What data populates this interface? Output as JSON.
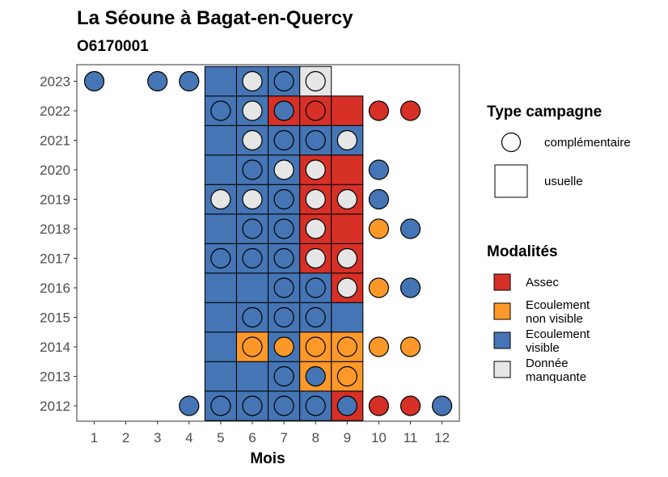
{
  "chart_data": {
    "type": "heatmap",
    "title": "La Séoune à Bagat-en-Quercy",
    "subtitle": "O6170001",
    "xlabel": "Mois",
    "ylabel": "",
    "x_ticks": [
      "1",
      "2",
      "3",
      "4",
      "5",
      "6",
      "7",
      "8",
      "9",
      "10",
      "11",
      "12"
    ],
    "y_ticks": [
      "2012",
      "2013",
      "2014",
      "2015",
      "2016",
      "2017",
      "2018",
      "2019",
      "2020",
      "2021",
      "2022",
      "2023"
    ],
    "colors": {
      "Assec": "#d73027",
      "Ecoulement non visible": "#fe9929",
      "Ecoulement visible": "#4575b4",
      "Donnée manquante": "#e6e6e6"
    },
    "legend_type": {
      "title": "Type campagne",
      "entries": [
        {
          "label": "complémentaire",
          "shape": "circle"
        },
        {
          "label": "usuelle",
          "shape": "square"
        }
      ]
    },
    "legend_modalites": {
      "title": "Modalités",
      "entries": [
        {
          "key": "Assec",
          "lines": [
            "Assec"
          ]
        },
        {
          "key": "Ecoulement non visible",
          "lines": [
            "Ecoulement",
            "non visible"
          ]
        },
        {
          "key": "Ecoulement visible",
          "lines": [
            "Ecoulement",
            "visible"
          ]
        },
        {
          "key": "Donnée manquante",
          "lines": [
            "Donnée",
            "manquante"
          ]
        }
      ]
    },
    "usuelle": [
      {
        "year": "2012",
        "month": 5,
        "value": "Ecoulement visible"
      },
      {
        "year": "2012",
        "month": 6,
        "value": "Ecoulement visible"
      },
      {
        "year": "2012",
        "month": 7,
        "value": "Ecoulement visible"
      },
      {
        "year": "2012",
        "month": 8,
        "value": "Ecoulement visible"
      },
      {
        "year": "2012",
        "month": 9,
        "value": "Assec"
      },
      {
        "year": "2013",
        "month": 5,
        "value": "Ecoulement visible"
      },
      {
        "year": "2013",
        "month": 6,
        "value": "Ecoulement visible"
      },
      {
        "year": "2013",
        "month": 7,
        "value": "Ecoulement visible"
      },
      {
        "year": "2013",
        "month": 8,
        "value": "Ecoulement non visible"
      },
      {
        "year": "2013",
        "month": 9,
        "value": "Ecoulement non visible"
      },
      {
        "year": "2014",
        "month": 5,
        "value": "Ecoulement visible"
      },
      {
        "year": "2014",
        "month": 6,
        "value": "Ecoulement non visible"
      },
      {
        "year": "2014",
        "month": 7,
        "value": "Ecoulement visible"
      },
      {
        "year": "2014",
        "month": 8,
        "value": "Ecoulement non visible"
      },
      {
        "year": "2014",
        "month": 9,
        "value": "Ecoulement non visible"
      },
      {
        "year": "2015",
        "month": 5,
        "value": "Ecoulement visible"
      },
      {
        "year": "2015",
        "month": 6,
        "value": "Ecoulement visible"
      },
      {
        "year": "2015",
        "month": 7,
        "value": "Ecoulement visible"
      },
      {
        "year": "2015",
        "month": 8,
        "value": "Ecoulement visible"
      },
      {
        "year": "2015",
        "month": 9,
        "value": "Ecoulement visible"
      },
      {
        "year": "2016",
        "month": 5,
        "value": "Ecoulement visible"
      },
      {
        "year": "2016",
        "month": 6,
        "value": "Ecoulement visible"
      },
      {
        "year": "2016",
        "month": 7,
        "value": "Ecoulement visible"
      },
      {
        "year": "2016",
        "month": 8,
        "value": "Ecoulement visible"
      },
      {
        "year": "2016",
        "month": 9,
        "value": "Assec"
      },
      {
        "year": "2017",
        "month": 5,
        "value": "Ecoulement visible"
      },
      {
        "year": "2017",
        "month": 6,
        "value": "Ecoulement visible"
      },
      {
        "year": "2017",
        "month": 7,
        "value": "Ecoulement visible"
      },
      {
        "year": "2017",
        "month": 8,
        "value": "Assec"
      },
      {
        "year": "2017",
        "month": 9,
        "value": "Assec"
      },
      {
        "year": "2018",
        "month": 5,
        "value": "Ecoulement visible"
      },
      {
        "year": "2018",
        "month": 6,
        "value": "Ecoulement visible"
      },
      {
        "year": "2018",
        "month": 7,
        "value": "Ecoulement visible"
      },
      {
        "year": "2018",
        "month": 8,
        "value": "Assec"
      },
      {
        "year": "2018",
        "month": 9,
        "value": "Assec"
      },
      {
        "year": "2019",
        "month": 5,
        "value": "Ecoulement visible"
      },
      {
        "year": "2019",
        "month": 6,
        "value": "Ecoulement visible"
      },
      {
        "year": "2019",
        "month": 7,
        "value": "Ecoulement visible"
      },
      {
        "year": "2019",
        "month": 8,
        "value": "Assec"
      },
      {
        "year": "2019",
        "month": 9,
        "value": "Assec"
      },
      {
        "year": "2020",
        "month": 5,
        "value": "Ecoulement visible"
      },
      {
        "year": "2020",
        "month": 6,
        "value": "Ecoulement visible"
      },
      {
        "year": "2020",
        "month": 7,
        "value": "Ecoulement visible"
      },
      {
        "year": "2020",
        "month": 8,
        "value": "Assec"
      },
      {
        "year": "2020",
        "month": 9,
        "value": "Assec"
      },
      {
        "year": "2021",
        "month": 5,
        "value": "Ecoulement visible"
      },
      {
        "year": "2021",
        "month": 6,
        "value": "Ecoulement visible"
      },
      {
        "year": "2021",
        "month": 7,
        "value": "Ecoulement visible"
      },
      {
        "year": "2021",
        "month": 8,
        "value": "Ecoulement visible"
      },
      {
        "year": "2021",
        "month": 9,
        "value": "Ecoulement visible"
      },
      {
        "year": "2022",
        "month": 5,
        "value": "Ecoulement visible"
      },
      {
        "year": "2022",
        "month": 6,
        "value": "Ecoulement visible"
      },
      {
        "year": "2022",
        "month": 7,
        "value": "Assec"
      },
      {
        "year": "2022",
        "month": 8,
        "value": "Assec"
      },
      {
        "year": "2022",
        "month": 9,
        "value": "Assec"
      },
      {
        "year": "2023",
        "month": 5,
        "value": "Ecoulement visible"
      },
      {
        "year": "2023",
        "month": 6,
        "value": "Ecoulement visible"
      },
      {
        "year": "2023",
        "month": 7,
        "value": "Ecoulement visible"
      },
      {
        "year": "2023",
        "month": 8,
        "value": "Donnée manquante"
      }
    ],
    "complementaire": [
      {
        "year": "2012",
        "month": 4,
        "value": "Ecoulement visible"
      },
      {
        "year": "2012",
        "month": 5,
        "value": "Ecoulement visible"
      },
      {
        "year": "2012",
        "month": 6,
        "value": "Ecoulement visible"
      },
      {
        "year": "2012",
        "month": 7,
        "value": "Ecoulement visible"
      },
      {
        "year": "2012",
        "month": 8,
        "value": "Ecoulement visible"
      },
      {
        "year": "2012",
        "month": 9,
        "value": "Ecoulement visible"
      },
      {
        "year": "2012",
        "month": 10,
        "value": "Assec"
      },
      {
        "year": "2012",
        "month": 11,
        "value": "Assec"
      },
      {
        "year": "2012",
        "month": 12,
        "value": "Ecoulement visible"
      },
      {
        "year": "2013",
        "month": 7,
        "value": "Ecoulement visible"
      },
      {
        "year": "2013",
        "month": 8,
        "value": "Ecoulement visible"
      },
      {
        "year": "2013",
        "month": 9,
        "value": "Ecoulement non visible"
      },
      {
        "year": "2014",
        "month": 6,
        "value": "Ecoulement non visible"
      },
      {
        "year": "2014",
        "month": 7,
        "value": "Ecoulement non visible"
      },
      {
        "year": "2014",
        "month": 8,
        "value": "Ecoulement non visible"
      },
      {
        "year": "2014",
        "month": 9,
        "value": "Ecoulement non visible"
      },
      {
        "year": "2014",
        "month": 10,
        "value": "Ecoulement non visible"
      },
      {
        "year": "2014",
        "month": 11,
        "value": "Ecoulement non visible"
      },
      {
        "year": "2015",
        "month": 6,
        "value": "Ecoulement visible"
      },
      {
        "year": "2015",
        "month": 7,
        "value": "Ecoulement visible"
      },
      {
        "year": "2015",
        "month": 8,
        "value": "Ecoulement visible"
      },
      {
        "year": "2016",
        "month": 7,
        "value": "Ecoulement visible"
      },
      {
        "year": "2016",
        "month": 8,
        "value": "Ecoulement visible"
      },
      {
        "year": "2016",
        "month": 9,
        "value": "Donnée manquante"
      },
      {
        "year": "2016",
        "month": 10,
        "value": "Ecoulement non visible"
      },
      {
        "year": "2016",
        "month": 11,
        "value": "Ecoulement visible"
      },
      {
        "year": "2017",
        "month": 5,
        "value": "Ecoulement visible"
      },
      {
        "year": "2017",
        "month": 6,
        "value": "Ecoulement visible"
      },
      {
        "year": "2017",
        "month": 7,
        "value": "Ecoulement visible"
      },
      {
        "year": "2017",
        "month": 8,
        "value": "Donnée manquante"
      },
      {
        "year": "2017",
        "month": 9,
        "value": "Donnée manquante"
      },
      {
        "year": "2018",
        "month": 6,
        "value": "Ecoulement visible"
      },
      {
        "year": "2018",
        "month": 7,
        "value": "Ecoulement visible"
      },
      {
        "year": "2018",
        "month": 8,
        "value": "Donnée manquante"
      },
      {
        "year": "2018",
        "month": 10,
        "value": "Ecoulement non visible"
      },
      {
        "year": "2018",
        "month": 11,
        "value": "Ecoulement visible"
      },
      {
        "year": "2019",
        "month": 5,
        "value": "Donnée manquante"
      },
      {
        "year": "2019",
        "month": 6,
        "value": "Donnée manquante"
      },
      {
        "year": "2019",
        "month": 7,
        "value": "Ecoulement visible"
      },
      {
        "year": "2019",
        "month": 8,
        "value": "Donnée manquante"
      },
      {
        "year": "2019",
        "month": 9,
        "value": "Donnée manquante"
      },
      {
        "year": "2019",
        "month": 10,
        "value": "Ecoulement visible"
      },
      {
        "year": "2020",
        "month": 6,
        "value": "Ecoulement visible"
      },
      {
        "year": "2020",
        "month": 7,
        "value": "Donnée manquante"
      },
      {
        "year": "2020",
        "month": 8,
        "value": "Donnée manquante"
      },
      {
        "year": "2020",
        "month": 10,
        "value": "Ecoulement visible"
      },
      {
        "year": "2021",
        "month": 6,
        "value": "Donnée manquante"
      },
      {
        "year": "2021",
        "month": 7,
        "value": "Ecoulement visible"
      },
      {
        "year": "2021",
        "month": 8,
        "value": "Ecoulement visible"
      },
      {
        "year": "2021",
        "month": 9,
        "value": "Donnée manquante"
      },
      {
        "year": "2022",
        "month": 5,
        "value": "Ecoulement visible"
      },
      {
        "year": "2022",
        "month": 6,
        "value": "Donnée manquante"
      },
      {
        "year": "2022",
        "month": 7,
        "value": "Ecoulement visible"
      },
      {
        "year": "2022",
        "month": 8,
        "value": "Assec"
      },
      {
        "year": "2022",
        "month": 10,
        "value": "Assec"
      },
      {
        "year": "2022",
        "month": 11,
        "value": "Assec"
      },
      {
        "year": "2023",
        "month": 1,
        "value": "Ecoulement visible"
      },
      {
        "year": "2023",
        "month": 3,
        "value": "Ecoulement visible"
      },
      {
        "year": "2023",
        "month": 4,
        "value": "Ecoulement visible"
      },
      {
        "year": "2023",
        "month": 6,
        "value": "Donnée manquante"
      },
      {
        "year": "2023",
        "month": 7,
        "value": "Ecoulement visible"
      },
      {
        "year": "2023",
        "month": 8,
        "value": "Donnée manquante"
      }
    ]
  }
}
